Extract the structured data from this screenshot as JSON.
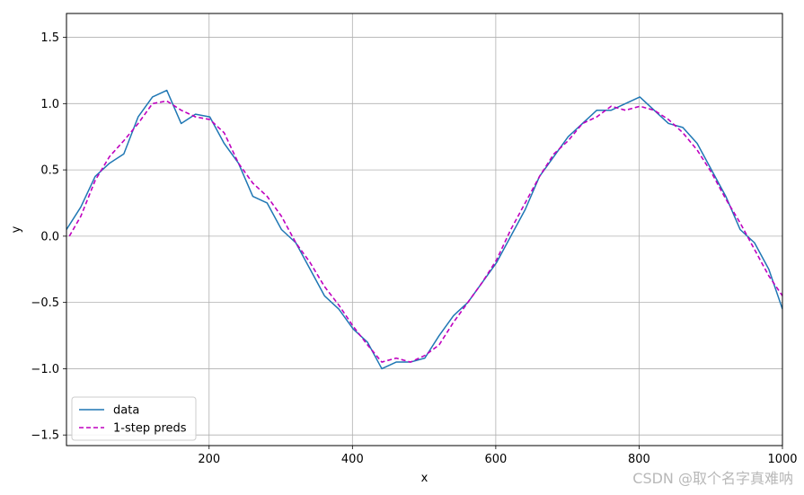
{
  "chart_data": {
    "type": "line",
    "xlabel": "x",
    "ylabel": "y",
    "xlim": [
      1,
      1000
    ],
    "ylim": [
      -1.58,
      1.68
    ],
    "xticks": [
      200,
      400,
      600,
      800,
      1000
    ],
    "yticks": [
      -1.5,
      -1.0,
      -0.5,
      0.0,
      0.5,
      1.0,
      1.5
    ],
    "xtick_labels": [
      "200",
      "400",
      "600",
      "800",
      "1000"
    ],
    "ytick_labels": [
      "−1.5",
      "−1.0",
      "−0.5",
      "0.0",
      "0.5",
      "1.0",
      "1.5"
    ],
    "grid": true,
    "legend_position": "lower-left",
    "series": [
      {
        "name": "data",
        "color": "#1f77b4",
        "style": "solid",
        "x": [
          1,
          21,
          41,
          61,
          81,
          101,
          121,
          141,
          161,
          181,
          201,
          221,
          241,
          261,
          281,
          301,
          321,
          341,
          361,
          381,
          401,
          421,
          441,
          461,
          481,
          501,
          521,
          541,
          561,
          581,
          601,
          621,
          641,
          661,
          681,
          701,
          721,
          741,
          761,
          781,
          801,
          821,
          841,
          861,
          881,
          901,
          921,
          941,
          961,
          981,
          1000
        ],
        "y": [
          0.05,
          0.22,
          0.45,
          0.55,
          0.62,
          0.9,
          1.05,
          1.1,
          0.85,
          0.92,
          0.9,
          0.7,
          0.55,
          0.3,
          0.25,
          0.05,
          -0.05,
          -0.25,
          -0.45,
          -0.55,
          -0.7,
          -0.8,
          -1.0,
          -0.95,
          -0.95,
          -0.92,
          -0.75,
          -0.6,
          -0.5,
          -0.35,
          -0.2,
          0.0,
          0.2,
          0.45,
          0.6,
          0.75,
          0.85,
          0.95,
          0.95,
          1.0,
          1.05,
          0.95,
          0.85,
          0.82,
          0.7,
          0.5,
          0.3,
          0.05,
          -0.05,
          -0.25,
          -0.55
        ]
      },
      {
        "name": "1-step preds",
        "color": "#bf00bf",
        "style": "dashed",
        "x": [
          5,
          21,
          41,
          61,
          81,
          101,
          121,
          141,
          161,
          181,
          201,
          221,
          241,
          261,
          281,
          301,
          321,
          341,
          361,
          381,
          401,
          421,
          441,
          461,
          481,
          501,
          521,
          541,
          561,
          581,
          601,
          621,
          641,
          661,
          681,
          701,
          721,
          741,
          761,
          781,
          801,
          821,
          841,
          861,
          881,
          901,
          921,
          941,
          961,
          981,
          1000
        ],
        "y": [
          0.0,
          0.15,
          0.42,
          0.6,
          0.72,
          0.85,
          1.0,
          1.02,
          0.95,
          0.9,
          0.88,
          0.78,
          0.55,
          0.4,
          0.3,
          0.15,
          -0.05,
          -0.2,
          -0.38,
          -0.52,
          -0.68,
          -0.82,
          -0.95,
          -0.92,
          -0.95,
          -0.9,
          -0.82,
          -0.65,
          -0.5,
          -0.35,
          -0.18,
          0.05,
          0.25,
          0.45,
          0.62,
          0.72,
          0.85,
          0.9,
          0.98,
          0.95,
          0.98,
          0.95,
          0.88,
          0.78,
          0.65,
          0.48,
          0.28,
          0.1,
          -0.1,
          -0.3,
          -0.45
        ]
      }
    ]
  },
  "watermark": "CSDN @取个名字真难呐"
}
